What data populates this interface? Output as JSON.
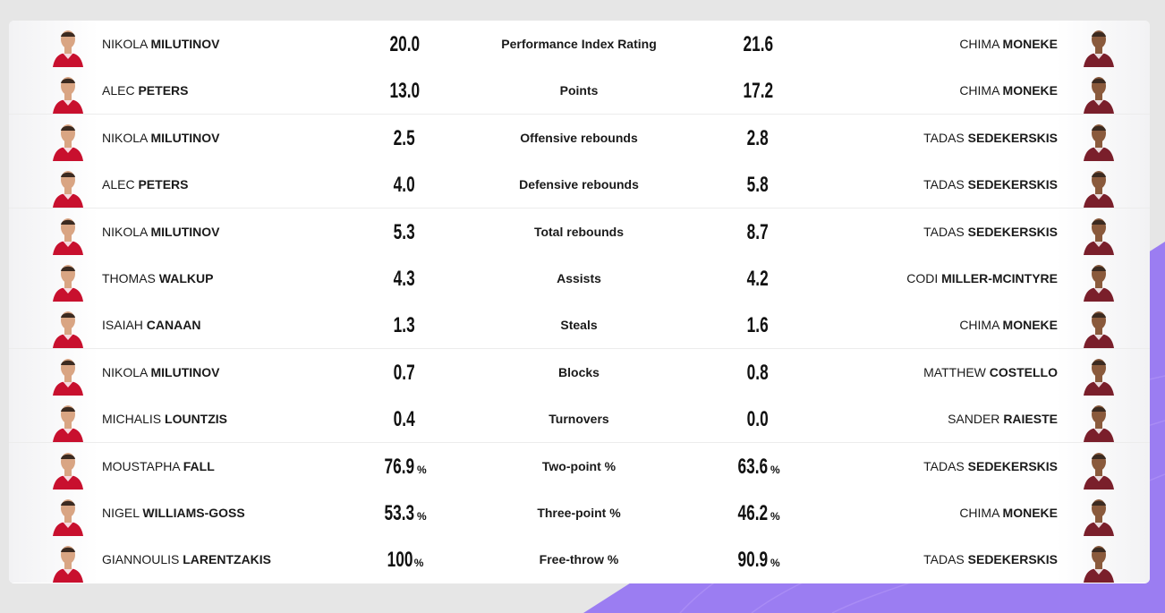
{
  "colors": {
    "home_jersey": "#c8102e",
    "away_jersey": "#7a1f2b",
    "accent_purple": "#9b7df2"
  },
  "rows": [
    {
      "stat": "Performance Index Rating",
      "home": {
        "first": "NIKOLA",
        "last": "MILUTINOV",
        "value": "20.0",
        "pct": ""
      },
      "away": {
        "first": "CHIMA",
        "last": "MONEKE",
        "value": "21.6",
        "pct": ""
      }
    },
    {
      "stat": "Points",
      "home": {
        "first": "ALEC",
        "last": "PETERS",
        "value": "13.0",
        "pct": ""
      },
      "away": {
        "first": "CHIMA",
        "last": "MONEKE",
        "value": "17.2",
        "pct": ""
      }
    },
    {
      "stat": "Offensive rebounds",
      "home": {
        "first": "NIKOLA",
        "last": "MILUTINOV",
        "value": "2.5",
        "pct": ""
      },
      "away": {
        "first": "TADAS",
        "last": "SEDEKERSKIS",
        "value": "2.8",
        "pct": ""
      }
    },
    {
      "stat": "Defensive rebounds",
      "home": {
        "first": "ALEC",
        "last": "PETERS",
        "value": "4.0",
        "pct": ""
      },
      "away": {
        "first": "TADAS",
        "last": "SEDEKERSKIS",
        "value": "5.8",
        "pct": ""
      }
    },
    {
      "stat": "Total rebounds",
      "home": {
        "first": "NIKOLA",
        "last": "MILUTINOV",
        "value": "5.3",
        "pct": ""
      },
      "away": {
        "first": "TADAS",
        "last": "SEDEKERSKIS",
        "value": "8.7",
        "pct": ""
      }
    },
    {
      "stat": "Assists",
      "home": {
        "first": "THOMAS",
        "last": "WALKUP",
        "value": "4.3",
        "pct": ""
      },
      "away": {
        "first": "CODI",
        "last": "MILLER-MCINTYRE",
        "value": "4.2",
        "pct": ""
      }
    },
    {
      "stat": "Steals",
      "home": {
        "first": "ISAIAH",
        "last": "CANAAN",
        "value": "1.3",
        "pct": ""
      },
      "away": {
        "first": "CHIMA",
        "last": "MONEKE",
        "value": "1.6",
        "pct": ""
      }
    },
    {
      "stat": "Blocks",
      "home": {
        "first": "NIKOLA",
        "last": "MILUTINOV",
        "value": "0.7",
        "pct": ""
      },
      "away": {
        "first": "MATTHEW",
        "last": "COSTELLO",
        "value": "0.8",
        "pct": ""
      }
    },
    {
      "stat": "Turnovers",
      "home": {
        "first": "MICHALIS",
        "last": "LOUNTZIS",
        "value": "0.4",
        "pct": ""
      },
      "away": {
        "first": "SANDER",
        "last": "RAIESTE",
        "value": "0.0",
        "pct": ""
      }
    },
    {
      "stat": "Two-point %",
      "home": {
        "first": "MOUSTAPHA",
        "last": "FALL",
        "value": "76.9",
        "pct": "%"
      },
      "away": {
        "first": "TADAS",
        "last": "SEDEKERSKIS",
        "value": "63.6",
        "pct": "%"
      }
    },
    {
      "stat": "Three-point %",
      "home": {
        "first": "NIGEL",
        "last": "WILLIAMS-GOSS",
        "value": "53.3",
        "pct": "%"
      },
      "away": {
        "first": "CHIMA",
        "last": "MONEKE",
        "value": "46.2",
        "pct": "%"
      }
    },
    {
      "stat": "Free-throw %",
      "home": {
        "first": "GIANNOULIS",
        "last": "LARENTZAKIS",
        "value": "100",
        "pct": "%"
      },
      "away": {
        "first": "TADAS",
        "last": "SEDEKERSKIS",
        "value": "90.9",
        "pct": "%"
      }
    }
  ]
}
